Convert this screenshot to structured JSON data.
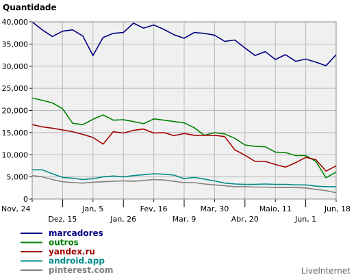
{
  "chart_data": {
    "type": "line",
    "ylabel": "Quantidade",
    "source": "LiveInternet",
    "ylim": [
      0,
      40000
    ],
    "yticks": [
      {
        "value": 0,
        "label": "0"
      },
      {
        "value": 5000,
        "label": "5,000"
      },
      {
        "value": 10000,
        "label": "10,000"
      },
      {
        "value": 15000,
        "label": "15,000"
      },
      {
        "value": 20000,
        "label": "20,000"
      },
      {
        "value": 25000,
        "label": "25,000"
      },
      {
        "value": 30000,
        "label": "30,000"
      },
      {
        "value": 35000,
        "label": "35,000"
      },
      {
        "value": 40000,
        "label": "40,000"
      }
    ],
    "xticks": [
      {
        "week": 0,
        "label": "Nov, 24",
        "row": 0
      },
      {
        "week": 3,
        "label": "Dez, 15",
        "row": 1
      },
      {
        "week": 6,
        "label": "Jan, 5",
        "row": 0
      },
      {
        "week": 9,
        "label": "Jan, 26",
        "row": 1
      },
      {
        "week": 12,
        "label": "Fev, 16",
        "row": 0
      },
      {
        "week": 15,
        "label": "Mar, 9",
        "row": 1
      },
      {
        "week": 18,
        "label": "Mar, 30",
        "row": 0
      },
      {
        "week": 21,
        "label": "Abr, 20",
        "row": 1
      },
      {
        "week": 24,
        "label": "Maio, 11",
        "row": 0
      },
      {
        "week": 27,
        "label": "Jun, 1",
        "row": 1
      },
      {
        "week": 30,
        "label": "Jun, 18",
        "row": 0
      }
    ],
    "grid": true,
    "legend_position": "bottom-left",
    "series": [
      {
        "name": "marcadores",
        "color": "#000080",
        "values": [
          40000,
          38200,
          36700,
          37900,
          38200,
          36800,
          32400,
          36500,
          37400,
          37600,
          39700,
          38600,
          39300,
          38300,
          37100,
          36300,
          37600,
          37400,
          37000,
          35600,
          35900,
          34100,
          32400,
          33300,
          31500,
          32600,
          31100,
          31600,
          30900,
          30100,
          32600
        ]
      },
      {
        "name": "outros",
        "color": "#008000",
        "values": [
          22800,
          22300,
          21700,
          20400,
          17100,
          16800,
          18000,
          19000,
          17800,
          17900,
          17500,
          17000,
          18100,
          17800,
          17500,
          17200,
          16100,
          14400,
          15000,
          14700,
          13700,
          12200,
          11900,
          11800,
          10600,
          10500,
          9800,
          9800,
          8500,
          4800,
          6100
        ]
      },
      {
        "name": "yandex.ru",
        "color": "#a00000",
        "values": [
          16800,
          16300,
          16000,
          15600,
          15200,
          14600,
          13900,
          12400,
          15200,
          14900,
          15500,
          15800,
          14900,
          15000,
          14300,
          14800,
          14400,
          14400,
          14400,
          14100,
          11100,
          9900,
          8500,
          8500,
          7800,
          7200,
          8200,
          9400,
          8900,
          6300,
          7500
        ]
      },
      {
        "name": "android.app",
        "color": "#008b8b",
        "values": [
          6600,
          6600,
          5700,
          4900,
          4700,
          4400,
          4600,
          5000,
          5200,
          5000,
          5300,
          5500,
          5700,
          5600,
          5400,
          4600,
          4900,
          4500,
          4100,
          3600,
          3400,
          3300,
          3300,
          3400,
          3300,
          3300,
          3200,
          3200,
          2900,
          2800,
          2800
        ]
      },
      {
        "name": "pinterest.com",
        "color": "#808080",
        "values": [
          5300,
          5000,
          4400,
          3900,
          3700,
          3600,
          3800,
          3900,
          4000,
          4100,
          4000,
          4200,
          4400,
          4300,
          4000,
          3700,
          3700,
          3400,
          3200,
          3000,
          2800,
          2800,
          2700,
          2700,
          2600,
          2600,
          2600,
          2500,
          2200,
          1900,
          1400
        ]
      }
    ]
  }
}
